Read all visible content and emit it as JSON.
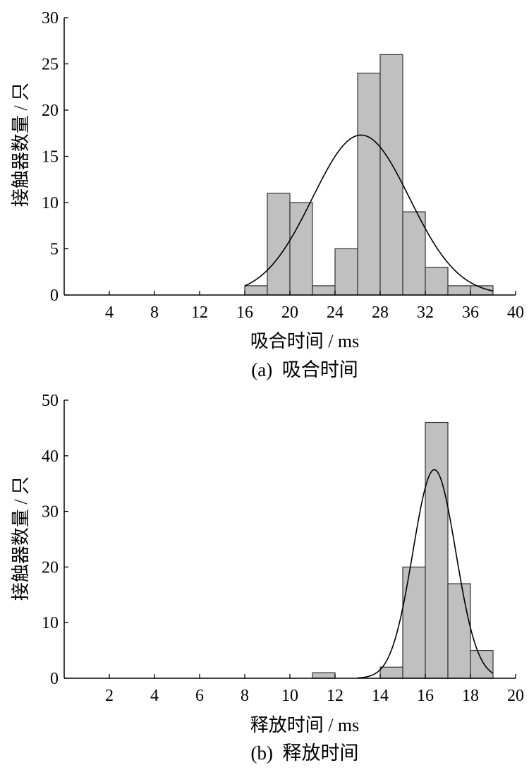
{
  "chart_data": [
    {
      "type": "bar",
      "subtype": "histogram",
      "xlabel": "吸合时间 / ms",
      "ylabel": "接触器数量 / 只",
      "caption": "(a)  吸合时间",
      "xlim": [
        0,
        40
      ],
      "ylim": [
        0,
        30
      ],
      "xticks": [
        4,
        8,
        12,
        16,
        20,
        24,
        28,
        32,
        36,
        40
      ],
      "yticks": [
        0,
        5,
        10,
        15,
        20,
        25,
        30
      ],
      "bin_width": 2,
      "bins": [
        {
          "x0": 16,
          "x1": 18,
          "value": 1
        },
        {
          "x0": 18,
          "x1": 20,
          "value": 11
        },
        {
          "x0": 20,
          "x1": 22,
          "value": 10
        },
        {
          "x0": 22,
          "x1": 24,
          "value": 1
        },
        {
          "x0": 24,
          "x1": 26,
          "value": 5
        },
        {
          "x0": 26,
          "x1": 28,
          "value": 24
        },
        {
          "x0": 28,
          "x1": 30,
          "value": 26
        },
        {
          "x0": 30,
          "x1": 32,
          "value": 9
        },
        {
          "x0": 32,
          "x1": 34,
          "value": 3
        },
        {
          "x0": 34,
          "x1": 36,
          "value": 1
        },
        {
          "x0": 36,
          "x1": 38,
          "value": 1
        }
      ],
      "fit": {
        "type": "normal",
        "mean": 26.3,
        "sd": 4.3,
        "peak": 17.3,
        "x_range": [
          16,
          38
        ]
      },
      "bar_color": "#c0c0c0",
      "grid": false
    },
    {
      "type": "bar",
      "subtype": "histogram",
      "xlabel": "释放时间 / ms",
      "ylabel": "接触器数量 / 只",
      "caption": "(b)  释放时间",
      "xlim": [
        0,
        20
      ],
      "ylim": [
        0,
        50
      ],
      "xticks": [
        2,
        4,
        6,
        8,
        10,
        12,
        14,
        16,
        18,
        20
      ],
      "yticks": [
        0,
        10,
        20,
        30,
        40,
        50
      ],
      "bin_width": 1,
      "bins": [
        {
          "x0": 11,
          "x1": 12,
          "value": 1
        },
        {
          "x0": 14,
          "x1": 15,
          "value": 2
        },
        {
          "x0": 15,
          "x1": 16,
          "value": 20
        },
        {
          "x0": 16,
          "x1": 17,
          "value": 46
        },
        {
          "x0": 17,
          "x1": 18,
          "value": 17
        },
        {
          "x0": 18,
          "x1": 19,
          "value": 5
        }
      ],
      "fit": {
        "type": "normal",
        "mean": 16.4,
        "sd": 0.95,
        "peak": 37.5,
        "x_range": [
          13,
          19
        ]
      },
      "bar_color": "#c0c0c0",
      "grid": false
    }
  ]
}
